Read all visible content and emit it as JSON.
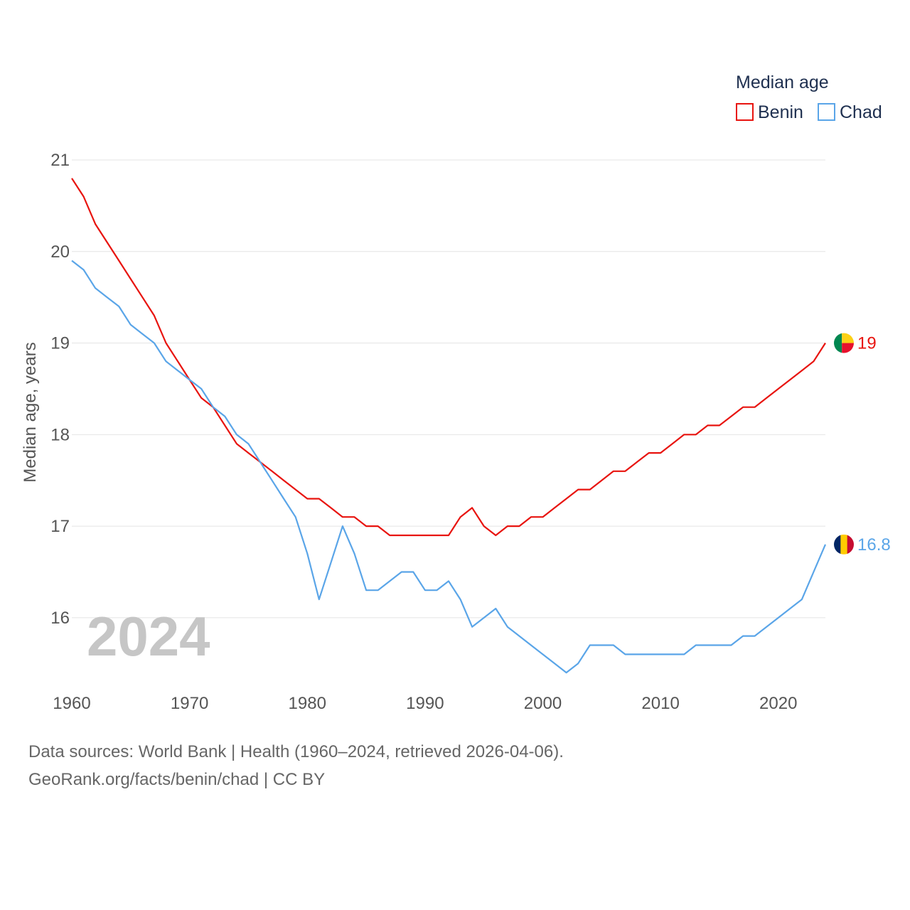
{
  "chart_data": {
    "type": "line",
    "title": "",
    "xlabel": "",
    "ylabel": "Median age, years",
    "xlim": [
      1960,
      2024
    ],
    "ylim": [
      15.3,
      21
    ],
    "y_ticks": [
      16,
      17,
      18,
      19,
      20,
      21
    ],
    "x_ticks": [
      1960,
      1970,
      1980,
      1990,
      2000,
      2010,
      2020
    ],
    "grid": true,
    "legend": {
      "title": "Median age",
      "position": "top-right"
    },
    "year_label": "2024",
    "x": [
      1960,
      1961,
      1962,
      1963,
      1964,
      1965,
      1966,
      1967,
      1968,
      1969,
      1970,
      1971,
      1972,
      1973,
      1974,
      1975,
      1976,
      1977,
      1978,
      1979,
      1980,
      1981,
      1982,
      1983,
      1984,
      1985,
      1986,
      1987,
      1988,
      1989,
      1990,
      1991,
      1992,
      1993,
      1994,
      1995,
      1996,
      1997,
      1998,
      1999,
      2000,
      2001,
      2002,
      2003,
      2004,
      2005,
      2006,
      2007,
      2008,
      2009,
      2010,
      2011,
      2012,
      2013,
      2014,
      2015,
      2016,
      2017,
      2018,
      2019,
      2020,
      2021,
      2022,
      2023,
      2024
    ],
    "series": [
      {
        "name": "Benin",
        "color": "#e8140f",
        "end_label": "19",
        "values": [
          20.8,
          20.6,
          20.3,
          20.1,
          19.9,
          19.7,
          19.5,
          19.3,
          19.0,
          18.8,
          18.6,
          18.4,
          18.3,
          18.1,
          17.9,
          17.8,
          17.7,
          17.6,
          17.5,
          17.4,
          17.3,
          17.3,
          17.2,
          17.1,
          17.1,
          17.0,
          17.0,
          16.9,
          16.9,
          16.9,
          16.9,
          16.9,
          16.9,
          17.1,
          17.2,
          17.0,
          16.9,
          17.0,
          17.0,
          17.1,
          17.1,
          17.2,
          17.3,
          17.4,
          17.4,
          17.5,
          17.6,
          17.6,
          17.7,
          17.8,
          17.8,
          17.9,
          18.0,
          18.0,
          18.1,
          18.1,
          18.2,
          18.3,
          18.3,
          18.4,
          18.5,
          18.6,
          18.7,
          18.8,
          19.0
        ]
      },
      {
        "name": "Chad",
        "color": "#5aa5e8",
        "end_label": "16.8",
        "values": [
          19.9,
          19.8,
          19.6,
          19.5,
          19.4,
          19.2,
          19.1,
          19.0,
          18.8,
          18.7,
          18.6,
          18.5,
          18.3,
          18.2,
          18.0,
          17.9,
          17.7,
          17.5,
          17.3,
          17.1,
          16.7,
          16.2,
          16.6,
          17.0,
          16.7,
          16.3,
          16.3,
          16.4,
          16.5,
          16.5,
          16.3,
          16.3,
          16.4,
          16.2,
          15.9,
          16.0,
          16.1,
          15.9,
          15.8,
          15.7,
          15.6,
          15.5,
          15.4,
          15.5,
          15.7,
          15.7,
          15.7,
          15.6,
          15.6,
          15.6,
          15.6,
          15.6,
          15.6,
          15.7,
          15.7,
          15.7,
          15.7,
          15.8,
          15.8,
          15.9,
          16.0,
          16.1,
          16.2,
          16.5,
          16.8
        ]
      }
    ],
    "flags": {
      "Benin": {
        "colors": [
          "#008751",
          "#fcd116",
          "#e8112d"
        ]
      },
      "Chad": {
        "colors": [
          "#002664",
          "#fecb00",
          "#c60c30"
        ]
      }
    }
  },
  "footer": {
    "sources": "Data sources: World Bank | Health (1960–2024, retrieved 2026-04-06).",
    "link": "GeoRank.org/facts/benin/chad | CC BY"
  }
}
